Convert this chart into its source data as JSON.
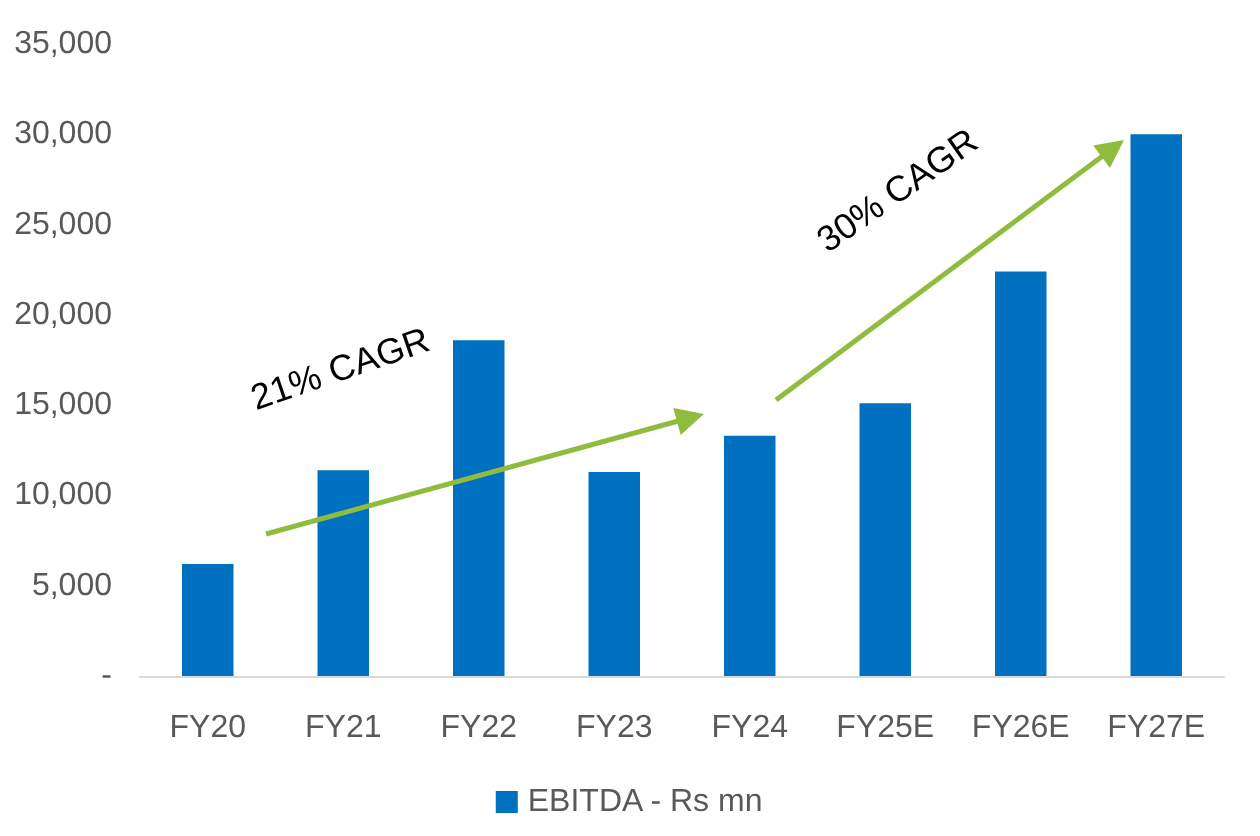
{
  "chart_data": {
    "type": "bar",
    "categories": [
      "FY20",
      "FY21",
      "FY22",
      "FY23",
      "FY24",
      "FY25E",
      "FY26E",
      "FY27E"
    ],
    "series": [
      {
        "name": "EBITDA - Rs mn",
        "color": "#0070c0",
        "values": [
          6200,
          11400,
          18600,
          11300,
          13300,
          15100,
          22400,
          30000
        ]
      }
    ],
    "ylim": [
      0,
      35000
    ],
    "yticks": [
      {
        "value": 0,
        "label": "-"
      },
      {
        "value": 5000,
        "label": "5,000"
      },
      {
        "value": 10000,
        "label": "10,000"
      },
      {
        "value": 15000,
        "label": "15,000"
      },
      {
        "value": 20000,
        "label": "20,000"
      },
      {
        "value": 25000,
        "label": "25,000"
      },
      {
        "value": 30000,
        "label": "30,000"
      },
      {
        "value": 35000,
        "label": "35,000"
      }
    ],
    "grid": false,
    "legend": "bottom",
    "annotations": [
      "21% CAGR",
      "30% CAGR"
    ]
  }
}
